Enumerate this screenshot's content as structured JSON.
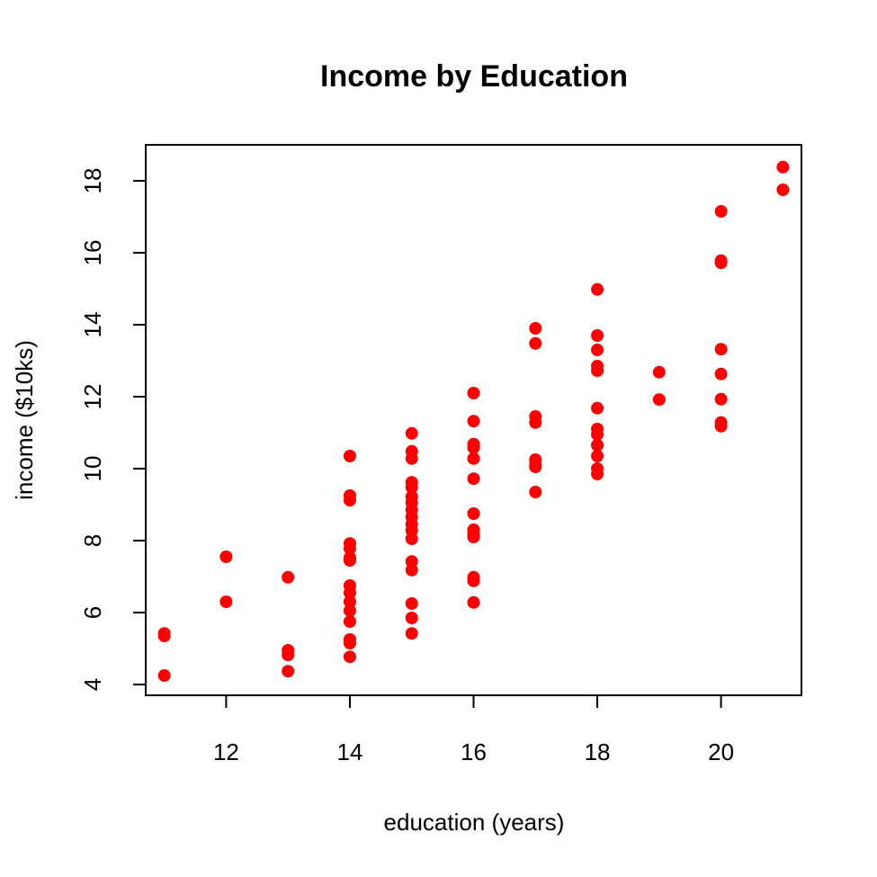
{
  "chart_data": {
    "type": "scatter",
    "title": "Income by Education",
    "xlabel": "education (years)",
    "ylabel": "income ($10ks)",
    "xlim": [
      10.7,
      21.3
    ],
    "ylim": [
      3.7,
      19.0
    ],
    "xticks": [
      12,
      14,
      16,
      18,
      20
    ],
    "yticks": [
      4,
      6,
      8,
      10,
      12,
      14,
      16,
      18
    ],
    "grid": false,
    "marker_color": "#ff0000",
    "points": [
      {
        "x": 11,
        "y": 5.42
      },
      {
        "x": 11,
        "y": 5.35
      },
      {
        "x": 11,
        "y": 4.25
      },
      {
        "x": 12,
        "y": 7.55
      },
      {
        "x": 12,
        "y": 6.3
      },
      {
        "x": 13,
        "y": 6.98
      },
      {
        "x": 13,
        "y": 4.95
      },
      {
        "x": 13,
        "y": 4.82
      },
      {
        "x": 13,
        "y": 4.37
      },
      {
        "x": 14,
        "y": 10.35
      },
      {
        "x": 14,
        "y": 9.25
      },
      {
        "x": 14,
        "y": 9.12
      },
      {
        "x": 14,
        "y": 7.92
      },
      {
        "x": 14,
        "y": 7.78
      },
      {
        "x": 14,
        "y": 7.52
      },
      {
        "x": 14,
        "y": 7.45
      },
      {
        "x": 14,
        "y": 6.75
      },
      {
        "x": 14,
        "y": 6.55
      },
      {
        "x": 14,
        "y": 6.3
      },
      {
        "x": 14,
        "y": 6.05
      },
      {
        "x": 14,
        "y": 5.75
      },
      {
        "x": 14,
        "y": 5.25
      },
      {
        "x": 14,
        "y": 5.15
      },
      {
        "x": 14,
        "y": 4.77
      },
      {
        "x": 15,
        "y": 10.98
      },
      {
        "x": 15,
        "y": 10.48
      },
      {
        "x": 15,
        "y": 10.28
      },
      {
        "x": 15,
        "y": 9.62
      },
      {
        "x": 15,
        "y": 9.48
      },
      {
        "x": 15,
        "y": 9.22
      },
      {
        "x": 15,
        "y": 9.05
      },
      {
        "x": 15,
        "y": 8.85
      },
      {
        "x": 15,
        "y": 8.65
      },
      {
        "x": 15,
        "y": 8.45
      },
      {
        "x": 15,
        "y": 8.28
      },
      {
        "x": 15,
        "y": 8.05
      },
      {
        "x": 15,
        "y": 7.42
      },
      {
        "x": 15,
        "y": 7.18
      },
      {
        "x": 15,
        "y": 6.25
      },
      {
        "x": 15,
        "y": 5.85
      },
      {
        "x": 15,
        "y": 5.42
      },
      {
        "x": 16,
        "y": 12.1
      },
      {
        "x": 16,
        "y": 11.32
      },
      {
        "x": 16,
        "y": 10.68
      },
      {
        "x": 16,
        "y": 10.58
      },
      {
        "x": 16,
        "y": 10.28
      },
      {
        "x": 16,
        "y": 9.72
      },
      {
        "x": 16,
        "y": 8.75
      },
      {
        "x": 16,
        "y": 8.3
      },
      {
        "x": 16,
        "y": 8.18
      },
      {
        "x": 16,
        "y": 8.1
      },
      {
        "x": 16,
        "y": 6.98
      },
      {
        "x": 16,
        "y": 6.88
      },
      {
        "x": 16,
        "y": 6.28
      },
      {
        "x": 17,
        "y": 13.9
      },
      {
        "x": 17,
        "y": 13.48
      },
      {
        "x": 17,
        "y": 11.45
      },
      {
        "x": 17,
        "y": 11.28
      },
      {
        "x": 17,
        "y": 10.25
      },
      {
        "x": 17,
        "y": 10.12
      },
      {
        "x": 17,
        "y": 10.05
      },
      {
        "x": 17,
        "y": 9.35
      },
      {
        "x": 18,
        "y": 14.98
      },
      {
        "x": 18,
        "y": 13.7
      },
      {
        "x": 18,
        "y": 13.3
      },
      {
        "x": 18,
        "y": 12.85
      },
      {
        "x": 18,
        "y": 12.72
      },
      {
        "x": 18,
        "y": 11.68
      },
      {
        "x": 18,
        "y": 11.1
      },
      {
        "x": 18,
        "y": 10.95
      },
      {
        "x": 18,
        "y": 10.65
      },
      {
        "x": 18,
        "y": 10.35
      },
      {
        "x": 18,
        "y": 10.0
      },
      {
        "x": 18,
        "y": 9.85
      },
      {
        "x": 19,
        "y": 12.68
      },
      {
        "x": 19,
        "y": 11.92
      },
      {
        "x": 20,
        "y": 17.15
      },
      {
        "x": 20,
        "y": 15.78
      },
      {
        "x": 20,
        "y": 15.72
      },
      {
        "x": 20,
        "y": 13.32
      },
      {
        "x": 20,
        "y": 12.63
      },
      {
        "x": 20,
        "y": 11.93
      },
      {
        "x": 20,
        "y": 11.28
      },
      {
        "x": 20,
        "y": 11.18
      },
      {
        "x": 21,
        "y": 18.38
      },
      {
        "x": 21,
        "y": 17.75
      }
    ]
  }
}
